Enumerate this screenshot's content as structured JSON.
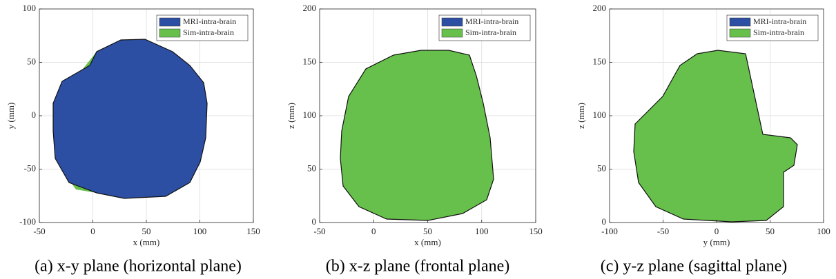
{
  "chart_data": [
    {
      "type": "mesh",
      "caption": "(a) x-y plane (horizontal plane)",
      "xlabel": "x (mm)",
      "ylabel": "y (mm)",
      "xlim": [
        -50,
        150
      ],
      "ylim": [
        -100,
        100
      ],
      "xticks": [
        -50,
        0,
        50,
        100,
        150
      ],
      "yticks": [
        -100,
        -50,
        0,
        50,
        100
      ],
      "grid": true,
      "series": [
        {
          "name": "MRI-intra-brain",
          "color": "#2c4fa3"
        },
        {
          "name": "Sim-intra-brain",
          "color": "#66c04b"
        }
      ]
    },
    {
      "type": "mesh",
      "caption": "(b) x-z plane (frontal plane)",
      "xlabel": "x (mm)",
      "ylabel": "z (mm)",
      "xlim": [
        -50,
        150
      ],
      "ylim": [
        0,
        200
      ],
      "xticks": [
        -50,
        0,
        50,
        100,
        150
      ],
      "yticks": [
        0,
        50,
        100,
        150,
        200
      ],
      "grid": true,
      "series": [
        {
          "name": "MRI-intra-brain",
          "color": "#2c4fa3"
        },
        {
          "name": "Sim-intra-brain",
          "color": "#66c04b"
        }
      ]
    },
    {
      "type": "mesh",
      "caption": "(c) y-z plane (sagittal plane)",
      "xlabel": "y (mm)",
      "ylabel": "z (mm)",
      "xlim": [
        -100,
        100
      ],
      "ylim": [
        0,
        200
      ],
      "xticks": [
        -100,
        -50,
        0,
        50,
        100
      ],
      "yticks": [
        0,
        50,
        100,
        150,
        200
      ],
      "grid": true,
      "series": [
        {
          "name": "MRI-intra-brain",
          "color": "#2c4fa3"
        },
        {
          "name": "Sim-intra-brain",
          "color": "#66c04b"
        }
      ]
    }
  ]
}
